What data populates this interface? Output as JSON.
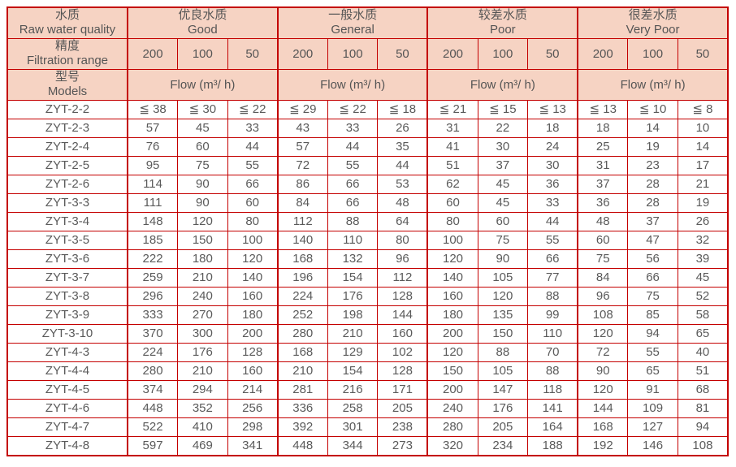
{
  "colors": {
    "border": "#c40000",
    "header_bg": "#f6d3c3",
    "header_text": "#555555",
    "data_text": "#5a5a5a"
  },
  "header": {
    "raw_water": {
      "zh": "水质",
      "en": "Raw water quality"
    },
    "qualities": [
      {
        "zh": "优良水质",
        "en": "Good"
      },
      {
        "zh": "一般水质",
        "en": "General"
      },
      {
        "zh": "较差水质",
        "en": "Poor"
      },
      {
        "zh": "很差水质",
        "en": "Very Poor"
      }
    ],
    "filtration": {
      "zh": "精度",
      "en": "Filtration range",
      "cols": [
        "200",
        "100",
        "50"
      ]
    },
    "models": {
      "zh": "型号",
      "en": "Models"
    },
    "flow_label": "Flow (m³/ h)"
  },
  "rows": [
    {
      "model": "ZYT-2-2",
      "values": [
        "≦ 38",
        "≦ 30",
        "≦ 22",
        "≦ 29",
        "≦ 22",
        "≦ 18",
        "≦ 21",
        "≦ 15",
        "≦ 13",
        "≦ 13",
        "≦ 10",
        "≦ 8"
      ]
    },
    {
      "model": "ZYT-2-3",
      "values": [
        "57",
        "45",
        "33",
        "43",
        "33",
        "26",
        "31",
        "22",
        "18",
        "18",
        "14",
        "10"
      ]
    },
    {
      "model": "ZYT-2-4",
      "values": [
        "76",
        "60",
        "44",
        "57",
        "44",
        "35",
        "41",
        "30",
        "24",
        "25",
        "19",
        "14"
      ]
    },
    {
      "model": "ZYT-2-5",
      "values": [
        "95",
        "75",
        "55",
        "72",
        "55",
        "44",
        "51",
        "37",
        "30",
        "31",
        "23",
        "17"
      ]
    },
    {
      "model": "ZYT-2-6",
      "values": [
        "114",
        "90",
        "66",
        "86",
        "66",
        "53",
        "62",
        "45",
        "36",
        "37",
        "28",
        "21"
      ]
    },
    {
      "model": "ZYT-3-3",
      "values": [
        "111",
        "90",
        "60",
        "84",
        "66",
        "48",
        "60",
        "45",
        "33",
        "36",
        "28",
        "19"
      ]
    },
    {
      "model": "ZYT-3-4",
      "values": [
        "148",
        "120",
        "80",
        "112",
        "88",
        "64",
        "80",
        "60",
        "44",
        "48",
        "37",
        "26"
      ]
    },
    {
      "model": "ZYT-3-5",
      "values": [
        "185",
        "150",
        "100",
        "140",
        "110",
        "80",
        "100",
        "75",
        "55",
        "60",
        "47",
        "32"
      ]
    },
    {
      "model": "ZYT-3-6",
      "values": [
        "222",
        "180",
        "120",
        "168",
        "132",
        "96",
        "120",
        "90",
        "66",
        "75",
        "56",
        "39"
      ]
    },
    {
      "model": "ZYT-3-7",
      "values": [
        "259",
        "210",
        "140",
        "196",
        "154",
        "112",
        "140",
        "105",
        "77",
        "84",
        "66",
        "45"
      ]
    },
    {
      "model": "ZYT-3-8",
      "values": [
        "296",
        "240",
        "160",
        "224",
        "176",
        "128",
        "160",
        "120",
        "88",
        "96",
        "75",
        "52"
      ]
    },
    {
      "model": "ZYT-3-9",
      "values": [
        "333",
        "270",
        "180",
        "252",
        "198",
        "144",
        "180",
        "135",
        "99",
        "108",
        "85",
        "58"
      ]
    },
    {
      "model": "ZYT-3-10",
      "values": [
        "370",
        "300",
        "200",
        "280",
        "210",
        "160",
        "200",
        "150",
        "110",
        "120",
        "94",
        "65"
      ]
    },
    {
      "model": "ZYT-4-3",
      "values": [
        "224",
        "176",
        "128",
        "168",
        "129",
        "102",
        "120",
        "88",
        "70",
        "72",
        "55",
        "40"
      ]
    },
    {
      "model": "ZYT-4-4",
      "values": [
        "280",
        "210",
        "160",
        "210",
        "154",
        "128",
        "150",
        "105",
        "88",
        "90",
        "65",
        "51"
      ]
    },
    {
      "model": "ZYT-4-5",
      "values": [
        "374",
        "294",
        "214",
        "281",
        "216",
        "171",
        "200",
        "147",
        "118",
        "120",
        "91",
        "68"
      ]
    },
    {
      "model": "ZYT-4-6",
      "values": [
        "448",
        "352",
        "256",
        "336",
        "258",
        "205",
        "240",
        "176",
        "141",
        "144",
        "109",
        "81"
      ]
    },
    {
      "model": "ZYT-4-7",
      "values": [
        "522",
        "410",
        "298",
        "392",
        "301",
        "238",
        "280",
        "205",
        "164",
        "168",
        "127",
        "94"
      ]
    },
    {
      "model": "ZYT-4-8",
      "values": [
        "597",
        "469",
        "341",
        "448",
        "344",
        "273",
        "320",
        "234",
        "188",
        "192",
        "146",
        "108"
      ]
    }
  ]
}
